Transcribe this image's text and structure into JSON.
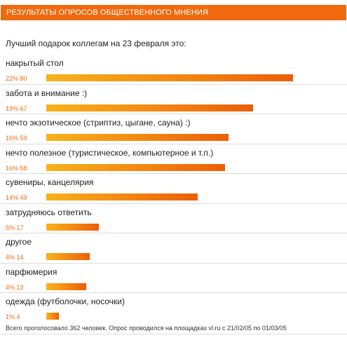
{
  "header": {
    "title": "РЕЗУЛЬТАТЫ ОПРОСОВ ОБЩЕСТВЕННОГО МНЕНИЯ"
  },
  "question": "Лучший подарок коллегам на 23 февраля это:",
  "footer": "Всего проголосовало 362 человек. Опрос проводился на площадках vl.ru с 21/02/05 по 01/03/05",
  "colors": {
    "header_bg": "#ef6a0e",
    "bar_start": "#f7b21a",
    "bar_end": "#ec5e08",
    "stat_text": "#ef6a0e"
  },
  "chart_data": {
    "type": "bar",
    "orientation": "horizontal",
    "title": "Лучший подарок коллегам на 23 февраля это:",
    "categories": [
      "накрытый стол",
      "забота и внимание :)",
      "нечто экзотическое (стриптиз, цыгане, сауна) :)",
      "нечто полезное (туристическое, компьютерное и т.п.)",
      "сувениры, канцелярия",
      "затрудняюсь ответить",
      "другое",
      "парфюмерия",
      "одежда (футболочки, носочки)"
    ],
    "values": [
      80,
      67,
      59,
      58,
      49,
      17,
      14,
      13,
      4
    ],
    "labels": [
      "22% 80",
      "19% 67",
      "16% 59",
      "16% 58",
      "14% 49",
      "5% 17",
      "4% 14",
      "4% 13",
      "1% 4"
    ],
    "total": 362,
    "xlim": [
      0,
      80
    ]
  }
}
